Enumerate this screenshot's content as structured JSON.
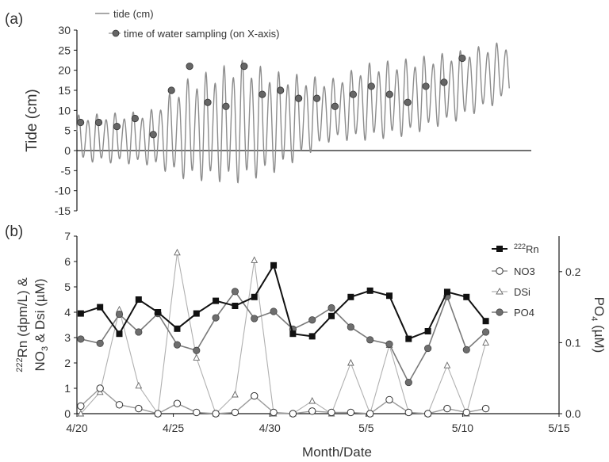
{
  "panels": {
    "a": {
      "label": "(a)"
    },
    "b": {
      "label": "(b)"
    }
  },
  "colors": {
    "tide": "#8c8c8c",
    "axis": "#1a1a1a",
    "sample_marker": "#666666",
    "rn": "#111111",
    "no3": "#9a9a9a",
    "dsi": "#b0b0b0",
    "po4": "#7a7a7a",
    "po4_marker": "#6e6e6e"
  },
  "chart_data": [
    {
      "type": "line",
      "panel": "a",
      "ylabel": "Tide (cm)",
      "ylim": [
        -15,
        30
      ],
      "yticks": [
        -15,
        -10,
        -5,
        0,
        5,
        10,
        15,
        20,
        25,
        30
      ],
      "x_domain": [
        "4/20",
        "5/15"
      ],
      "x_axis_at_y": 0,
      "legend": [
        "tide (cm)",
        "time of water sampling (on X-axis)"
      ],
      "legend_position": "top-left",
      "grid": false,
      "tide_series": {
        "name": "tide (cm)",
        "x_range_days": [
          0,
          23.8
        ],
        "tidal_period_days": 0.5,
        "envelope": [
          {
            "day": 0,
            "baseline": 3,
            "amplitude": 6
          },
          {
            "day": 4,
            "baseline": 3,
            "amplitude": 7
          },
          {
            "day": 6,
            "baseline": 5,
            "amplitude": 13
          },
          {
            "day": 9,
            "baseline": 7,
            "amplitude": 16
          },
          {
            "day": 11,
            "baseline": 7,
            "amplitude": 13
          },
          {
            "day": 14,
            "baseline": 10,
            "amplitude": 8
          },
          {
            "day": 16,
            "baseline": 12,
            "amplitude": 10
          },
          {
            "day": 18,
            "baseline": 13,
            "amplitude": 10
          },
          {
            "day": 21,
            "baseline": 16,
            "amplitude": 9
          },
          {
            "day": 23,
            "baseline": 19,
            "amplitude": 8
          },
          {
            "day": 23.8,
            "baseline": 20,
            "amplitude": 7
          }
        ]
      },
      "sampling_points": {
        "name": "time of water sampling (on X-axis)",
        "x": [
          0.2,
          1.2,
          2.2,
          3.2,
          4.2,
          5.2,
          6.2,
          7.2,
          8.2,
          9.2,
          10.2,
          11.2,
          12.2,
          13.2,
          14.2,
          15.2,
          16.2,
          17.2,
          18.2,
          19.2,
          20.2,
          21.2
        ],
        "y": [
          7,
          7,
          6,
          8,
          4,
          15,
          21,
          12,
          11,
          21,
          14,
          15,
          13,
          13,
          11,
          14,
          16,
          14,
          12,
          16,
          17,
          23
        ]
      }
    },
    {
      "type": "line",
      "panel": "b",
      "xlabel": "Month/Date",
      "xticks": [
        "4/20",
        "4/25",
        "4/30",
        "5/5",
        "5/10",
        "5/15"
      ],
      "ylabel": "222Rn (dpm/L) & NO3 & Dsi (µM)",
      "ylabel_parts": {
        "sup": "222",
        "rn": "Rn (dpm/L) &",
        "no3": "NO",
        "sub3": "3",
        "rest": " & Dsi (µM)"
      },
      "ylim": [
        0,
        7
      ],
      "yticks": [
        0,
        1,
        2,
        3,
        4,
        5,
        6,
        7
      ],
      "y2label": "PO4 (µM)",
      "y2label_parts": {
        "po": "PO",
        "sub4": "4",
        "rest": " (µM)"
      },
      "y2lim": [
        0,
        0.25
      ],
      "y2ticks": [
        0.0,
        0.1,
        0.2
      ],
      "legend_position": "top-right",
      "grid": false,
      "legend": [
        {
          "key": "rn",
          "label": "Rn",
          "sup": "222"
        },
        {
          "key": "no3",
          "label": "NO3"
        },
        {
          "key": "dsi",
          "label": "DSi"
        },
        {
          "key": "po4",
          "label": "PO4"
        }
      ],
      "x": [
        0.2,
        1.2,
        2.2,
        3.2,
        4.2,
        5.2,
        6.2,
        7.2,
        8.2,
        9.2,
        10.2,
        11.2,
        12.2,
        13.2,
        14.2,
        15.2,
        16.2,
        17.2,
        18.2,
        19.2,
        20.2,
        21.2
      ],
      "series": [
        {
          "name": "222Rn",
          "axis": "left",
          "values": [
            3.95,
            4.2,
            3.15,
            4.5,
            4.0,
            3.35,
            3.95,
            4.45,
            4.25,
            4.6,
            5.85,
            3.15,
            3.05,
            3.85,
            4.6,
            4.85,
            4.65,
            2.95,
            3.25,
            4.8,
            4.6,
            3.65
          ]
        },
        {
          "name": "NO3",
          "axis": "left",
          "values": [
            0.3,
            1.0,
            0.35,
            0.2,
            0.0,
            0.4,
            0.05,
            0.0,
            0.05,
            0.7,
            0.05,
            0.0,
            0.1,
            0.05,
            0.05,
            0.0,
            0.55,
            0.05,
            0.0,
            0.2,
            0.05,
            0.2
          ]
        },
        {
          "name": "DSi",
          "axis": "left",
          "values": [
            0.0,
            0.85,
            4.1,
            1.1,
            0.0,
            6.35,
            2.2,
            0.0,
            0.75,
            6.05,
            0.0,
            0.0,
            0.5,
            0.0,
            2.0,
            0.0,
            2.7,
            0.05,
            0.0,
            1.9,
            0.0,
            2.8
          ]
        },
        {
          "name": "PO4",
          "axis": "right",
          "values": [
            0.105,
            0.099,
            0.14,
            0.115,
            0.141,
            0.097,
            0.089,
            0.135,
            0.172,
            0.134,
            0.144,
            0.119,
            0.132,
            0.149,
            0.122,
            0.104,
            0.098,
            0.044,
            0.092,
            0.165,
            0.09,
            0.115
          ]
        }
      ]
    }
  ]
}
